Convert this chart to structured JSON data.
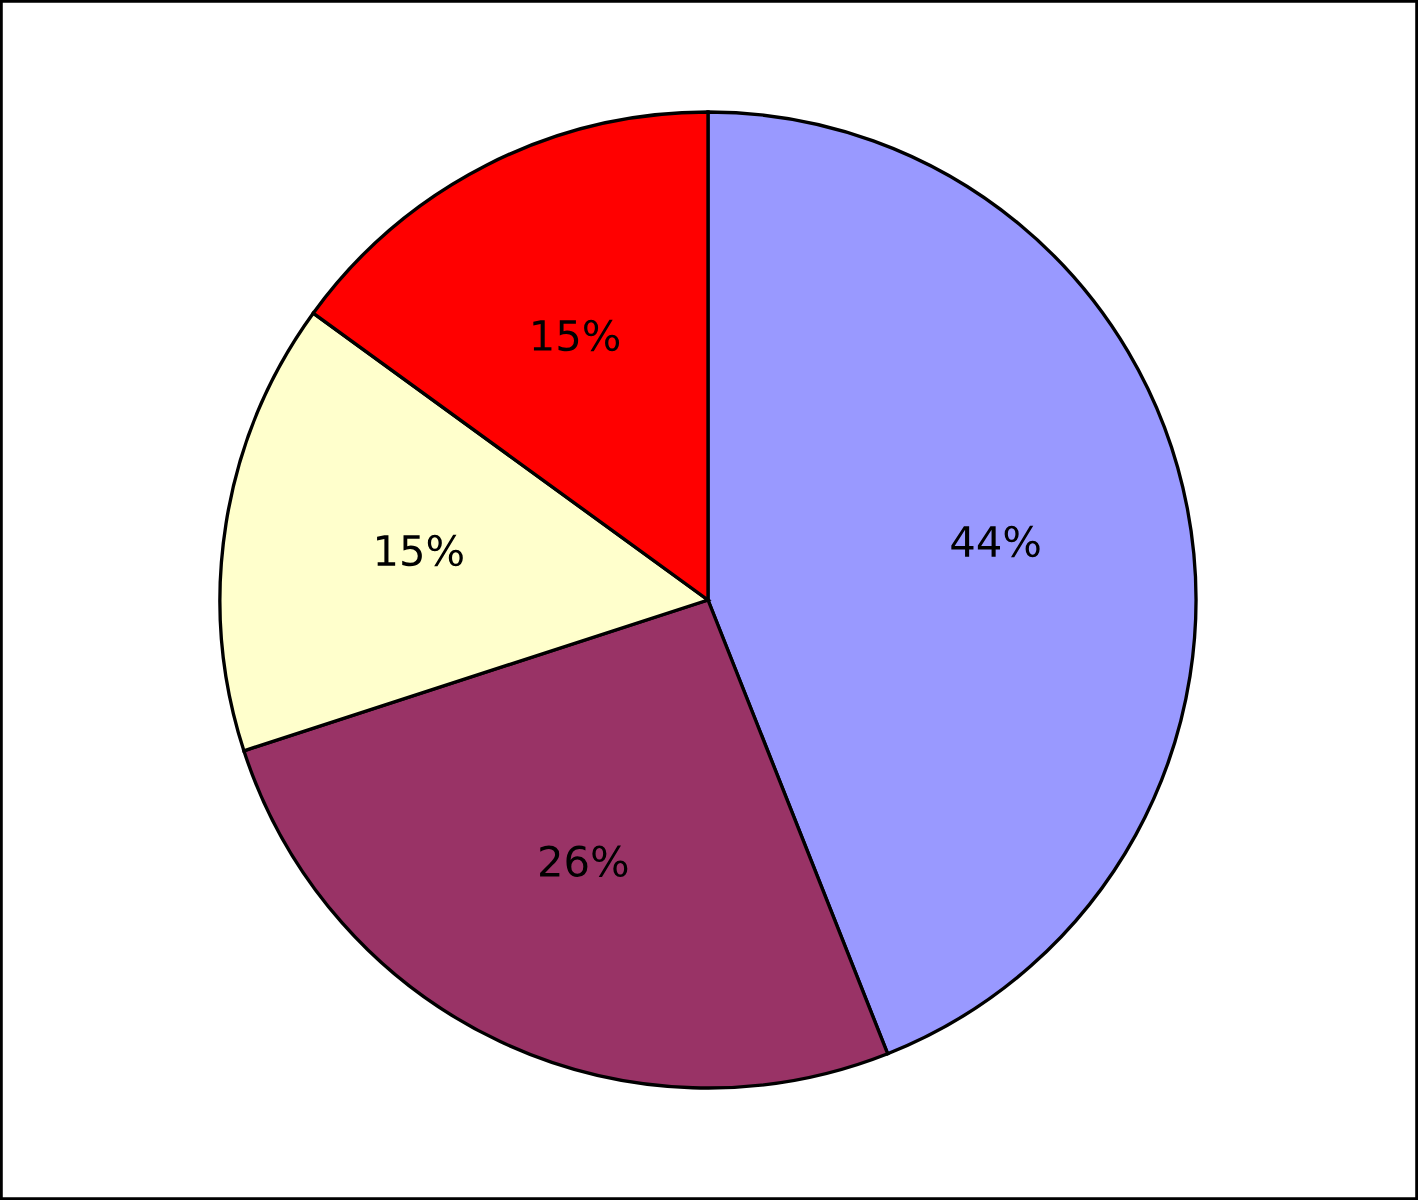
{
  "chart_data": {
    "type": "pie",
    "categories": [
      null,
      null,
      null,
      null
    ],
    "values": [
      44,
      26,
      15,
      15
    ],
    "colors": [
      "#9999ff",
      "#993366",
      "#ffffcc",
      "#ff0000"
    ],
    "value_labels": [
      "44%",
      "26%",
      "15%",
      "15%"
    ]
  }
}
